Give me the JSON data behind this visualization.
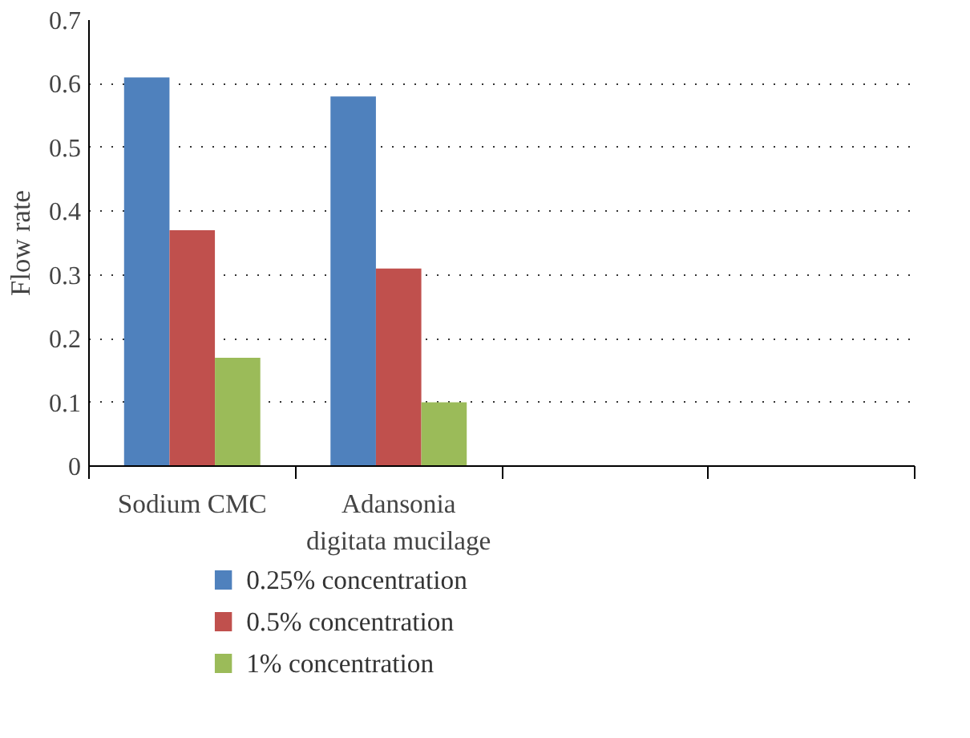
{
  "chart_data": {
    "type": "bar",
    "ylabel": "Flow rate",
    "categories": [
      "Sodium CMC",
      "Adansonia\ndigitata mucilage",
      null,
      null
    ],
    "series": [
      {
        "name": "0.25% concentration",
        "color": "#4f81bd",
        "values": [
          0.61,
          0.58,
          null,
          null
        ]
      },
      {
        "name": "0.5% concentration",
        "color": "#c0504d",
        "values": [
          0.37,
          0.31,
          null,
          null
        ]
      },
      {
        "name": "1% concentration",
        "color": "#9bbb59",
        "values": [
          0.17,
          0.1,
          null,
          null
        ]
      }
    ],
    "ylim": [
      0,
      0.7
    ],
    "yticks": [
      0,
      0.1,
      0.2,
      0.3,
      0.4,
      0.5,
      0.6,
      0.7
    ],
    "grid": "y",
    "legend": "bottom"
  }
}
